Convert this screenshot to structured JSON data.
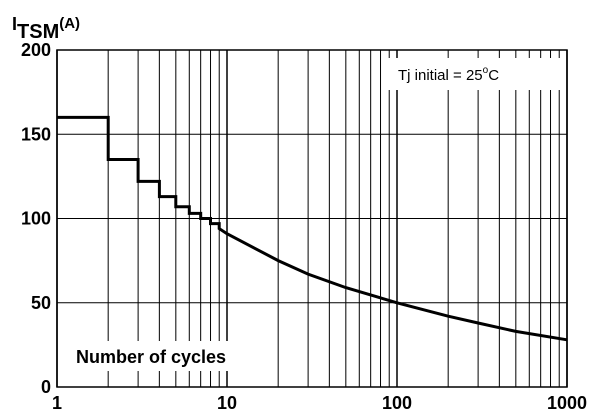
{
  "chart_data": {
    "type": "line",
    "x_scale": "log",
    "xlim": [
      1,
      1000
    ],
    "ylim": [
      0,
      200
    ],
    "grid": true,
    "ylabel": {
      "main": "I",
      "sub": "TSM",
      "unit": "(A)"
    },
    "xlabel": "Number of cycles",
    "x_ticks": [
      1,
      10,
      100,
      1000
    ],
    "x_tick_labels": [
      "1",
      "10",
      "100",
      "1000"
    ],
    "y_ticks": [
      0,
      50,
      100,
      150,
      200
    ],
    "y_tick_labels": [
      "0",
      "50",
      "100",
      "150",
      "200"
    ],
    "annotation": {
      "text": "Tj  initial  = 25",
      "sup": "o",
      "suffix": "C"
    },
    "series": [
      {
        "x": [
          1,
          2,
          2,
          3,
          3,
          4,
          4,
          5,
          5,
          6,
          6,
          7,
          7,
          8,
          8,
          9,
          9,
          10,
          20,
          30,
          50,
          100,
          200,
          300,
          500,
          1000
        ],
        "y": [
          160,
          160,
          135,
          135,
          122,
          122,
          113,
          113,
          107,
          107,
          103,
          103,
          100,
          100,
          97,
          97,
          94,
          91,
          75,
          67,
          59,
          50,
          42,
          38,
          33,
          28
        ]
      }
    ]
  }
}
